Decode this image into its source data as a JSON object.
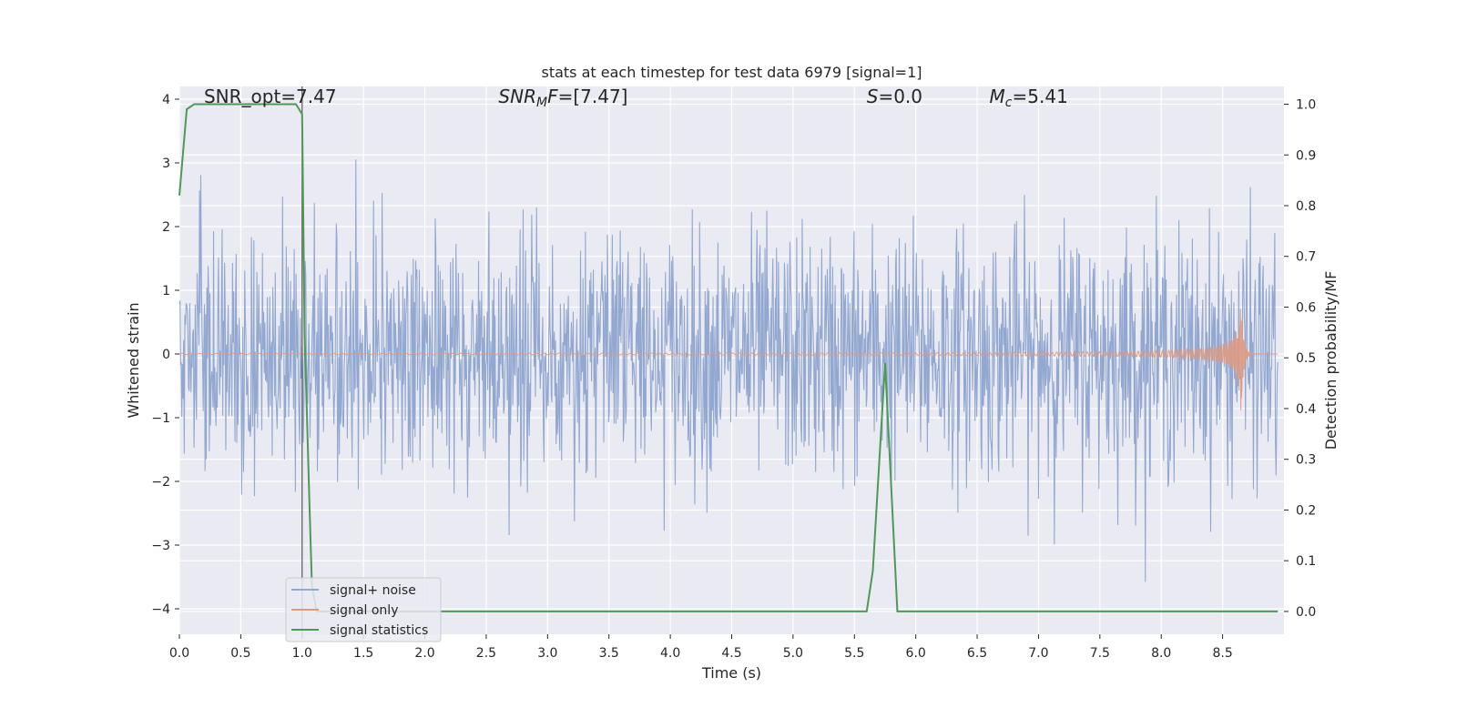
{
  "chart_data": {
    "type": "line",
    "title": "stats at each timestep for test data 6979 [signal=1]",
    "xlabel": "Time (s)",
    "ylabel_left": "Whitened strain",
    "ylabel_right": "Detection probability/MF",
    "xlim": [
      0,
      9.0
    ],
    "ylim_left": [
      -4.4,
      4.2
    ],
    "ylim_right": [
      -0.045,
      1.035
    ],
    "x_ticks": [
      0.0,
      0.5,
      1.0,
      1.5,
      2.0,
      2.5,
      3.0,
      3.5,
      4.0,
      4.5,
      5.0,
      5.5,
      6.0,
      6.5,
      7.0,
      7.5,
      8.0,
      8.5
    ],
    "x_tick_labels": [
      "0.0",
      "0.5",
      "1.0",
      "1.5",
      "2.0",
      "2.5",
      "3.0",
      "3.5",
      "4.0",
      "4.5",
      "5.0",
      "5.5",
      "6.0",
      "6.5",
      "7.0",
      "7.5",
      "8.0",
      "8.5"
    ],
    "y_left_ticks": [
      -4,
      -3,
      -2,
      -1,
      0,
      1,
      2,
      3,
      4
    ],
    "y_left_tick_labels": [
      "−4",
      "−3",
      "−2",
      "−1",
      "0",
      "1",
      "2",
      "3",
      "4"
    ],
    "y_right_ticks": [
      0.0,
      0.1,
      0.2,
      0.3,
      0.4,
      0.5,
      0.6,
      0.7,
      0.8,
      0.9,
      1.0
    ],
    "y_right_tick_labels": [
      "0.0",
      "0.1",
      "0.2",
      "0.3",
      "0.4",
      "0.5",
      "0.6",
      "0.7",
      "0.8",
      "0.9",
      "1.0"
    ],
    "grid": true,
    "legend_position": "lower-left",
    "annotations": [
      {
        "id": "snr-opt",
        "text": "SNR_opt=7.47",
        "x": 0.2,
        "y": 4.0
      },
      {
        "id": "snr-mf",
        "text": "SNR_MF=[7.47]",
        "x": 2.6,
        "y": 4.0
      },
      {
        "id": "s-stat",
        "text": "S=0.0",
        "x": 5.6,
        "y": 4.0
      },
      {
        "id": "mc",
        "text": "M_c=5.41",
        "x": 6.6,
        "y": 4.0
      }
    ],
    "vline_x": 1.0,
    "series": [
      {
        "name": "signal+ noise",
        "axis": "left",
        "color": "#92a8d1",
        "description_type": "noise",
        "amplitude_typical": 1.9,
        "amplitude_peak": 3.8,
        "sample_count": 1800
      },
      {
        "name": "signal only",
        "axis": "left",
        "color": "#dd9a83",
        "description_type": "chirp",
        "merger_time": 8.65,
        "peak_amplitude": 0.95,
        "amplitude_at_start": 0.02
      },
      {
        "name": "signal statistics",
        "axis": "right",
        "color": "#4c9a56",
        "x": [
          0.0,
          0.06,
          0.12,
          0.5,
          0.95,
          1.0,
          1.02,
          1.06,
          1.08,
          1.12,
          1.2,
          5.0,
          5.5,
          5.6,
          5.65,
          5.75,
          5.85,
          6.0,
          8.95
        ],
        "y": [
          0.82,
          0.99,
          1.0,
          1.0,
          1.0,
          0.98,
          0.55,
          0.21,
          0.05,
          0.0,
          0.0,
          0.0,
          0.0,
          0.0,
          0.08,
          0.49,
          0.0,
          0.0,
          0.0
        ]
      }
    ]
  }
}
